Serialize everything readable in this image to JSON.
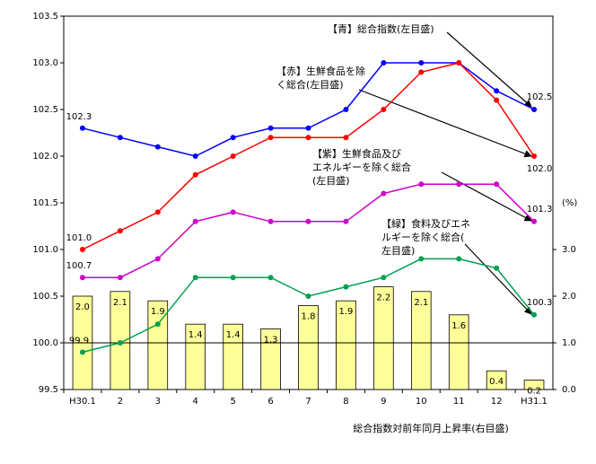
{
  "chart_data": {
    "type": "combo",
    "categories": [
      "H30.1",
      "2",
      "3",
      "4",
      "5",
      "6",
      "7",
      "8",
      "9",
      "10",
      "11",
      "12",
      "H31.1"
    ],
    "ylim": [
      99.5,
      103.5
    ],
    "yticks": [
      99.5,
      {
        "value": 100,
        "label": "100.0"
      },
      100.5,
      {
        "value": 101,
        "label": "101.0"
      },
      101.5,
      {
        "value": 102,
        "label": "102.0"
      },
      102.5,
      {
        "value": 103,
        "label": "103.0"
      },
      103.5
    ],
    "y2lim": [
      0,
      8
    ],
    "y2ticks": [
      {
        "value": 0,
        "label": "0.0"
      },
      {
        "value": 1,
        "label": "1.0"
      },
      {
        "value": 2,
        "label": "2.0"
      },
      {
        "value": 3,
        "label": "3.0"
      }
    ],
    "y2label": "(%)",
    "reference_line": 100,
    "series": [
      {
        "name": "【青】総合指数(左目盛)",
        "type": "line",
        "color": "#0000ff",
        "values": [
          102.3,
          102.2,
          102.1,
          102.0,
          102.2,
          102.3,
          102.3,
          102.5,
          103.0,
          103.0,
          103.0,
          102.7,
          102.5
        ],
        "value_labels": [
          "102.3",
          null,
          null,
          null,
          null,
          null,
          null,
          null,
          null,
          null,
          null,
          null,
          "102.5"
        ]
      },
      {
        "name": "【赤】生鮮食品を除く総合(左目盛)",
        "type": "line",
        "color": "#ff0000",
        "values": [
          101.0,
          101.2,
          101.4,
          101.8,
          102.0,
          102.2,
          102.2,
          102.2,
          102.5,
          102.9,
          103.0,
          102.6,
          102.0
        ],
        "value_labels": [
          "101.0",
          null,
          null,
          null,
          null,
          null,
          null,
          null,
          null,
          null,
          null,
          null,
          "102.0"
        ]
      },
      {
        "name": "【紫】生鮮食品及びエネルギーを除く総合(左目盛)",
        "type": "line",
        "color": "#cc00cc",
        "values": [
          100.7,
          100.7,
          100.9,
          101.3,
          101.4,
          101.3,
          101.3,
          101.3,
          101.6,
          101.7,
          101.7,
          101.7,
          101.3
        ],
        "value_labels": [
          "100.7",
          null,
          null,
          null,
          null,
          null,
          null,
          null,
          null,
          null,
          null,
          null,
          "101.3"
        ]
      },
      {
        "name": "【緑】食料及びエネルギーを除く総合(左目盛)",
        "type": "line",
        "color": "#00a050",
        "values": [
          99.9,
          100.0,
          100.2,
          100.7,
          100.7,
          100.7,
          100.5,
          100.6,
          100.7,
          100.9,
          100.9,
          100.8,
          100.3
        ],
        "value_labels": [
          "99.9",
          null,
          null,
          null,
          null,
          null,
          null,
          null,
          null,
          null,
          null,
          null,
          "100.3"
        ]
      },
      {
        "name": "総合指数対前年同月上昇率(右目盛)",
        "type": "bar",
        "axis": "y2",
        "color": "#ffff99",
        "values": [
          2.0,
          2.1,
          1.9,
          1.4,
          1.4,
          1.3,
          1.8,
          1.9,
          2.2,
          2.1,
          1.6,
          0.4,
          0.2
        ],
        "value_labels": [
          "2.0",
          "2.1",
          "1.9",
          "1.4",
          "1.4",
          "1.3",
          "1.8",
          "1.9",
          "2.2",
          "2.1",
          "1.6",
          "0.4",
          "0.2"
        ]
      }
    ]
  }
}
